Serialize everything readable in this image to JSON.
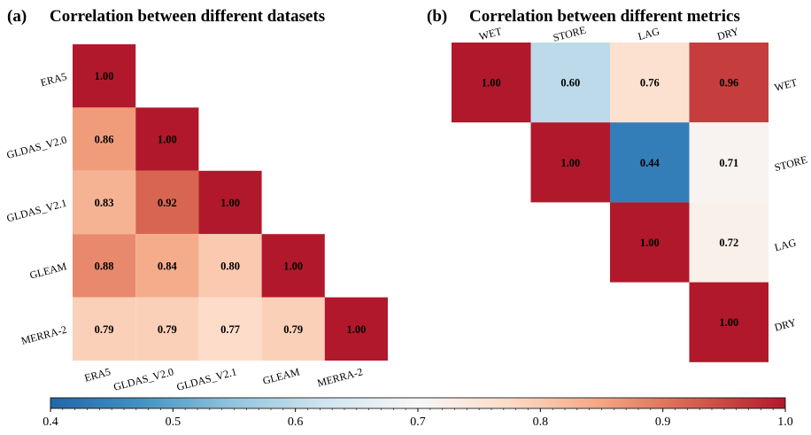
{
  "chart_data": [
    {
      "type": "heatmap",
      "panel": "(a)",
      "title": "Correlation between different datasets",
      "rows": [
        "ERA5",
        "GLDAS_V2.0",
        "GLDAS_V2.1",
        "GLEAM",
        "MERRA-2"
      ],
      "cols": [
        "ERA5",
        "GLDAS_V2.0",
        "GLDAS_V2.1",
        "GLEAM",
        "MERRA-2"
      ],
      "values": [
        [
          1.0,
          null,
          null,
          null,
          null
        ],
        [
          0.86,
          1.0,
          null,
          null,
          null
        ],
        [
          0.83,
          0.92,
          1.0,
          null,
          null
        ],
        [
          0.88,
          0.84,
          0.8,
          1.0,
          null
        ],
        [
          0.79,
          0.79,
          0.77,
          0.79,
          1.0
        ]
      ],
      "xlabel": "",
      "ylabel": ""
    },
    {
      "type": "heatmap",
      "panel": "(b)",
      "title": "Correlation between different metrics",
      "rows": [
        "WET",
        "STORE",
        "LAG",
        "DRY"
      ],
      "cols": [
        "WET",
        "STORE",
        "LAG",
        "DRY"
      ],
      "values": [
        [
          1.0,
          0.6,
          0.76,
          0.96
        ],
        [
          null,
          1.0,
          0.44,
          0.71
        ],
        [
          null,
          null,
          1.0,
          0.72
        ],
        [
          null,
          null,
          null,
          1.0
        ]
      ],
      "xlabel": "",
      "ylabel": ""
    }
  ],
  "colorbar": {
    "min": 0.4,
    "max": 1.0,
    "ticks": [
      "0.4",
      "0.5",
      "0.6",
      "0.7",
      "0.8",
      "0.9",
      "1.0"
    ],
    "colormap": "RdBu_r",
    "colors": [
      "#2166ac",
      "#4393c3",
      "#92c5de",
      "#d1e5f0",
      "#f7f7f7",
      "#fddbc7",
      "#f4a582",
      "#d6604d",
      "#b2182b"
    ]
  }
}
